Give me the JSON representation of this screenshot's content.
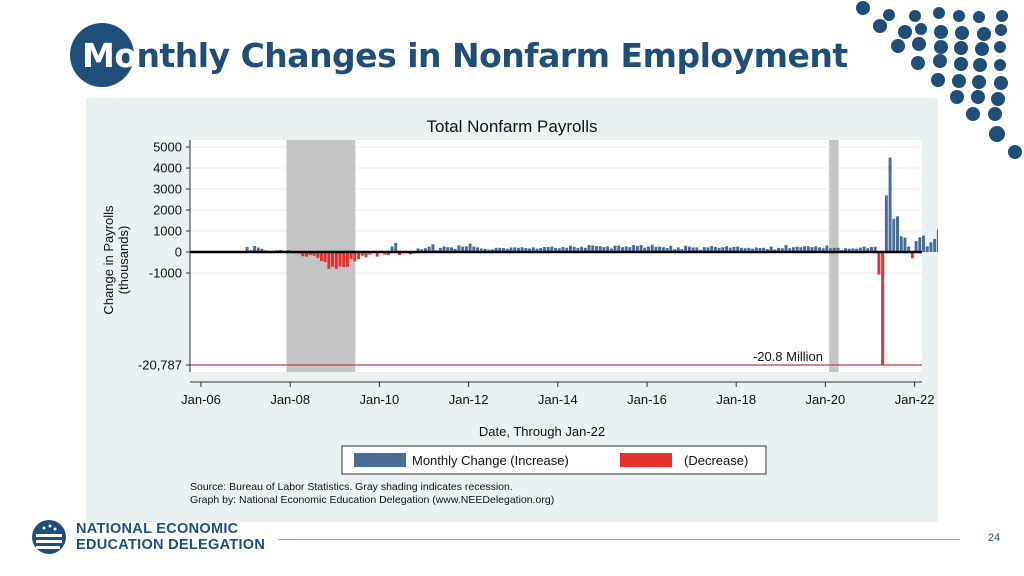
{
  "slide": {
    "title_lead": "Mo",
    "title_rest": "nthly Changes in Nonfarm Employment",
    "page_number": "24"
  },
  "logo": {
    "line1": "NATIONAL ECONOMIC",
    "line2": "EDUCATION DELEGATION"
  },
  "colors": {
    "brand": "#1f4e79",
    "increase": "#4a6d96",
    "decrease": "#e8312f",
    "recession": "#c4c4c4",
    "reference_line": "#c23a48",
    "panel_background": "#eaf1f3"
  },
  "chart_data": {
    "type": "bar",
    "title": "Total Nonfarm Payrolls",
    "xlabel": "Date, Through Jan-22",
    "ylabel_line1": "Change in Payrolls",
    "ylabel_line2": "(thousands)",
    "x_ticks": [
      "Jan-06",
      "Jan-08",
      "Jan-10",
      "Jan-12",
      "Jan-14",
      "Jan-16",
      "Jan-18",
      "Jan-20",
      "Jan-22"
    ],
    "x_tick_years": [
      2006,
      2008,
      2010,
      2012,
      2014,
      2016,
      2018,
      2020,
      2022
    ],
    "y_ticks": [
      5000,
      4000,
      3000,
      2000,
      1000,
      0,
      -1000,
      -20787
    ],
    "y_tick_labels": [
      "5000",
      "4000",
      "3000",
      "2000",
      "1000",
      "0",
      "-1000",
      "-20,787"
    ],
    "scale": "compressed below -1000",
    "x_range": [
      "Jan-06",
      "Jan-22"
    ],
    "grid": true,
    "legend_position": "bottom",
    "legend": [
      {
        "label": "Monthly Change (Increase)",
        "color": "#4a6d96"
      },
      {
        "label": "(Decrease)",
        "color": "#e8312f"
      }
    ],
    "recessions": [
      {
        "start": "Dec-07",
        "end": "Jun-09"
      },
      {
        "start": "Feb-20",
        "end": "Apr-20"
      }
    ],
    "reference_line": {
      "value": -20787,
      "label": "-20.8 Million"
    },
    "source_line1": "Source: Bureau of Labor Statistics. Gray shading indicates recession.",
    "source_line2": "Graph by: National Economic Education Delegation (www.NEEDelegation.org)",
    "start_month": "Jan-07",
    "values": [
      240,
      90,
      280,
      210,
      160,
      80,
      40,
      -20,
      80,
      100,
      20,
      90,
      20,
      -50,
      -80,
      -200,
      -220,
      -150,
      -180,
      -280,
      -430,
      -480,
      -800,
      -700,
      -800,
      -690,
      -720,
      -700,
      -330,
      -450,
      -340,
      -180,
      -250,
      -120,
      -10,
      -220,
      -35,
      -120,
      -150,
      270,
      430,
      -150,
      -70,
      -50,
      -110,
      -60,
      170,
      130,
      180,
      260,
      370,
      80,
      200,
      270,
      230,
      220,
      150,
      320,
      250,
      270,
      400,
      260,
      220,
      170,
      150,
      110,
      130,
      200,
      200,
      190,
      160,
      210,
      220,
      200,
      230,
      190,
      170,
      220,
      160,
      190,
      240,
      240,
      260,
      200,
      180,
      240,
      200,
      300,
      250,
      190,
      250,
      200,
      330,
      310,
      280,
      270,
      230,
      270,
      170,
      300,
      310,
      230,
      270,
      230,
      330,
      290,
      330,
      210,
      260,
      340,
      250,
      260,
      230,
      190,
      290,
      130,
      220,
      130,
      300,
      260,
      220,
      220,
      100,
      230,
      220,
      290,
      240,
      200,
      230,
      280,
      210,
      240,
      260,
      200,
      180,
      200,
      160,
      220,
      190,
      200,
      140,
      260,
      120,
      200,
      180,
      330,
      180,
      230,
      260,
      230,
      270,
      270,
      230,
      270,
      220,
      180,
      310,
      180,
      200,
      200,
      90,
      180,
      160,
      170,
      160,
      210,
      260,
      180,
      240,
      250,
      -1350,
      -20787,
      2700,
      4500,
      1580,
      1700,
      750,
      680,
      260,
      -300,
      520,
      700,
      780,
      270,
      460,
      620,
      1090,
      480,
      370,
      650,
      590,
      510,
      510
    ]
  }
}
